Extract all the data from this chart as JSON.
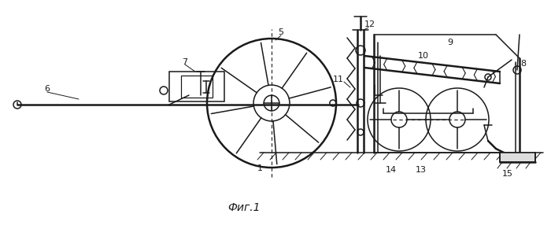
{
  "bg_color": "#ffffff",
  "line_color": "#1a1a1a",
  "title": "Фиг.1",
  "fig_width": 7.0,
  "fig_height": 2.86,
  "dpi": 100
}
